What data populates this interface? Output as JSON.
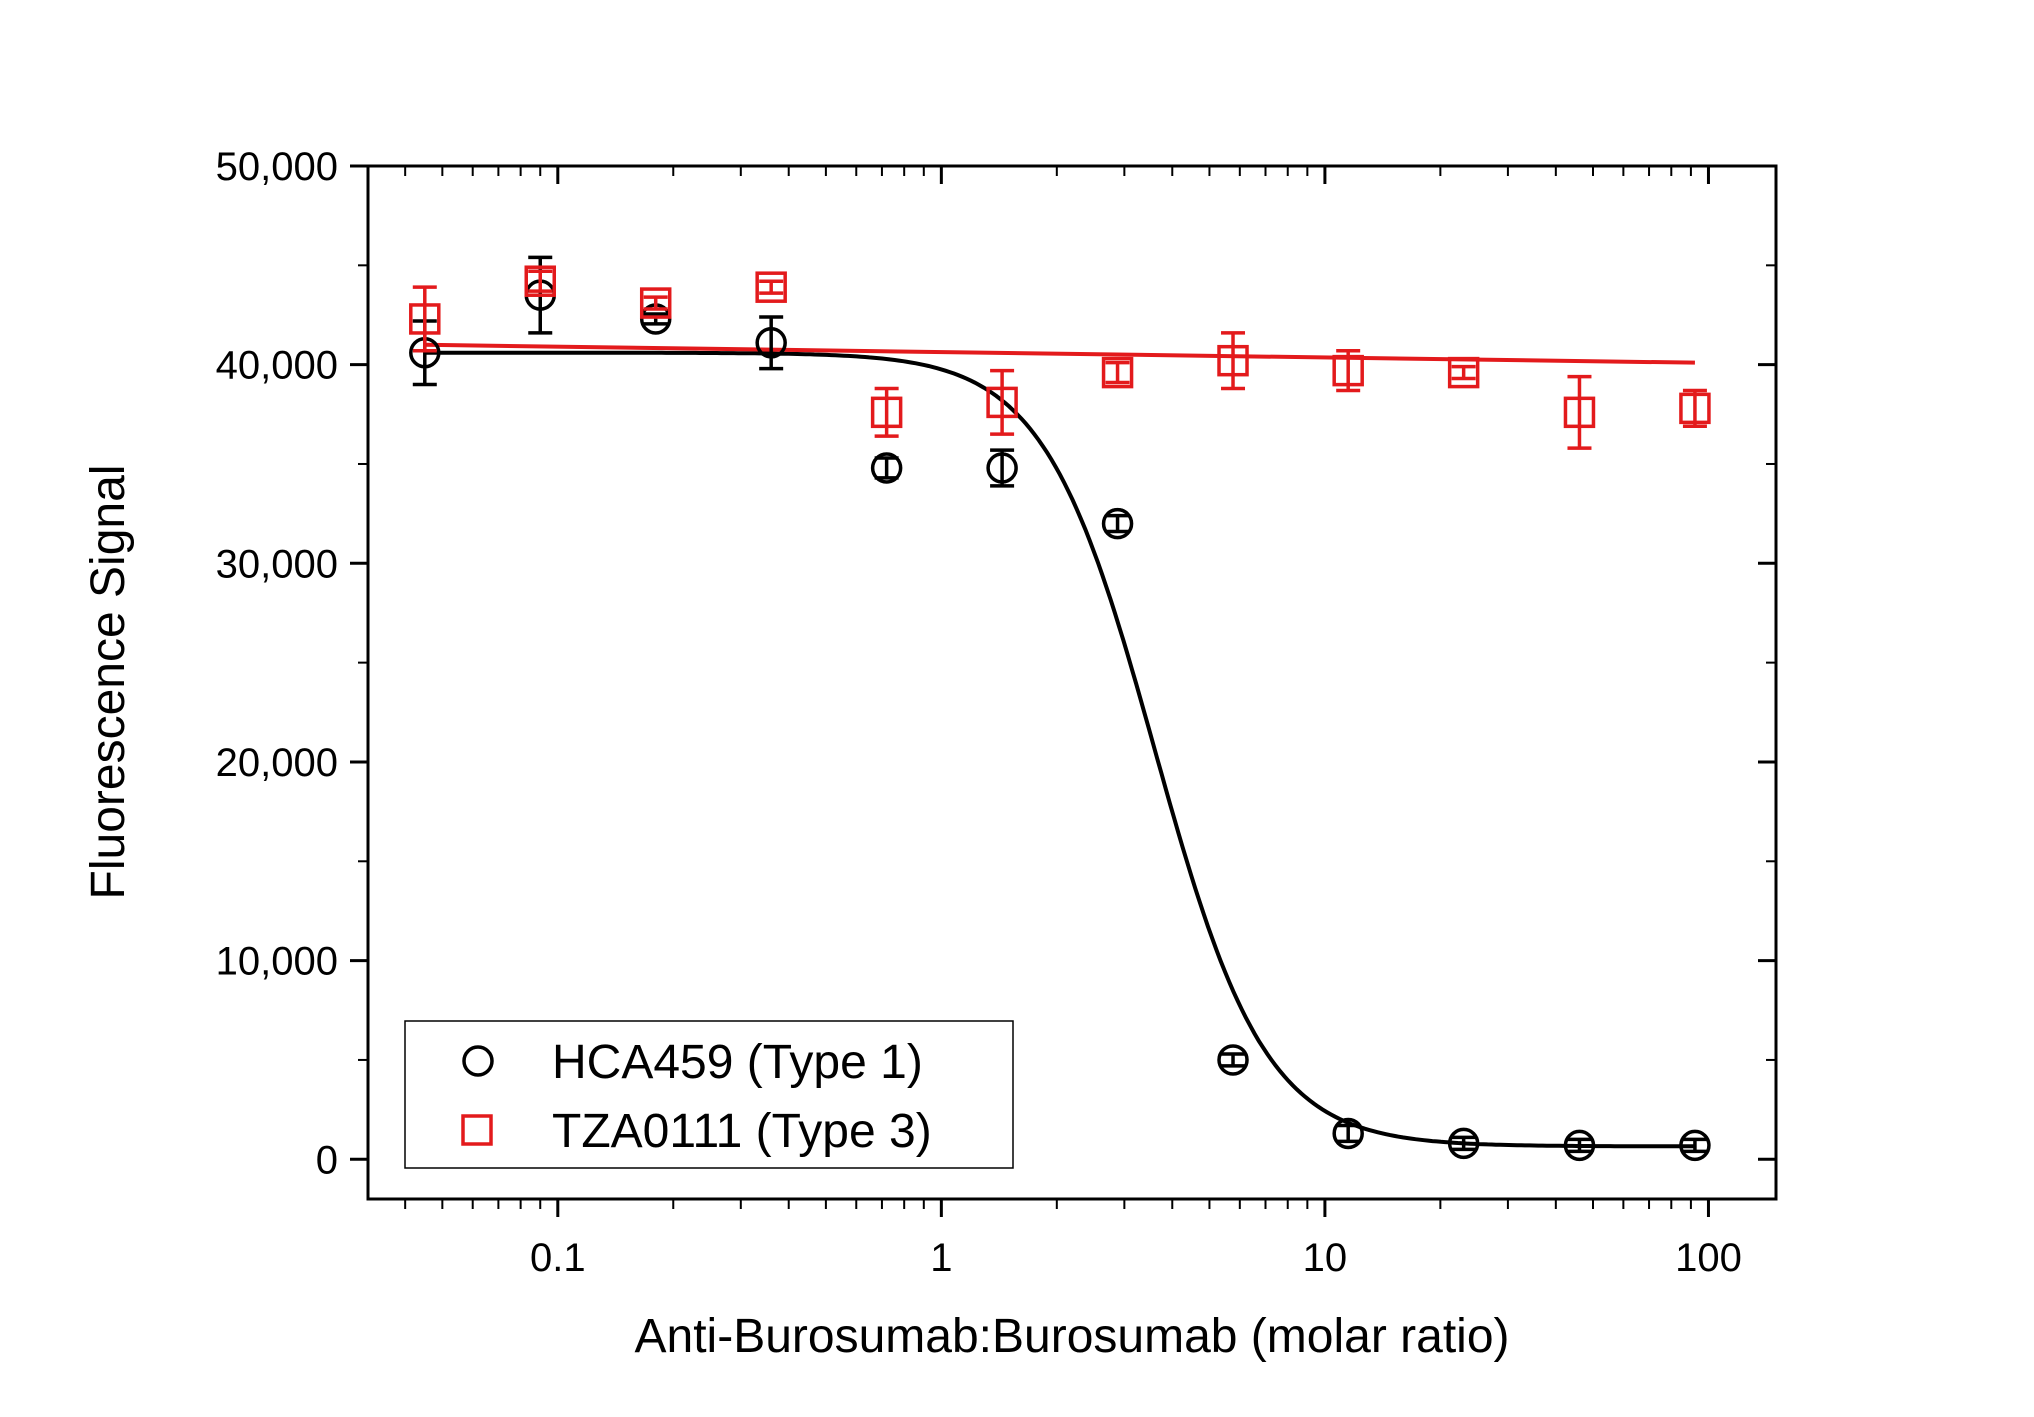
{
  "chart_data": {
    "type": "scatter",
    "xlabel": "Anti-Burosumab:Burosumab (molar ratio)",
    "ylabel": "Fluorescence Signal",
    "xscale": "log",
    "xlim": [
      0.032,
      150
    ],
    "ylim": [
      -2000,
      50000
    ],
    "x_ticks": [
      0.1,
      1,
      10,
      100
    ],
    "x_tick_labels": [
      "0.1",
      "1",
      "10",
      "100"
    ],
    "y_ticks": [
      0,
      10000,
      20000,
      30000,
      40000,
      50000
    ],
    "y_tick_labels": [
      "0",
      "10,000",
      "20,000",
      "30,000",
      "40,000",
      "50,000"
    ],
    "grid": false,
    "legend_position": "bottom-left",
    "series": [
      {
        "name": "HCA459 (Type 1)",
        "marker": "circle",
        "color": "#000000",
        "x": [
          0.045,
          0.09,
          0.18,
          0.36,
          0.72,
          1.44,
          2.88,
          5.76,
          11.5,
          23.0,
          46.1,
          92.2
        ],
        "y": [
          40600,
          43500,
          42300,
          41100,
          34800,
          34800,
          32000,
          5000,
          1300,
          800,
          700,
          700
        ],
        "err": [
          1600,
          1900,
          250,
          1300,
          500,
          900,
          400,
          300,
          400,
          300,
          300,
          300
        ],
        "fit": {
          "top": 40600,
          "bottom": 650,
          "ec50": 3.6,
          "hill": 3.0
        }
      },
      {
        "name": "TZA0111 (Type 3)",
        "marker": "square",
        "color": "#e31a1c",
        "x": [
          0.045,
          0.09,
          0.18,
          0.36,
          0.72,
          1.44,
          2.88,
          5.76,
          11.5,
          23.0,
          46.1,
          92.2
        ],
        "y": [
          42300,
          44200,
          43100,
          43900,
          37600,
          38100,
          39600,
          40200,
          39700,
          39600,
          37600,
          37800
        ],
        "err": [
          1600,
          500,
          300,
          300,
          1200,
          1600,
          500,
          1400,
          1000,
          300,
          1800,
          900
        ],
        "fit": {
          "y_start": 41000,
          "y_end": 40100
        }
      }
    ]
  }
}
